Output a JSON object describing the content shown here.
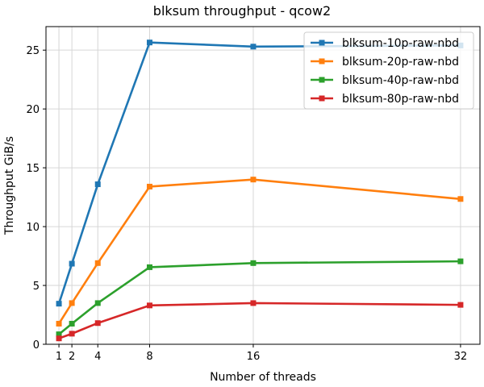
{
  "chart_data": {
    "type": "line",
    "title": "blksum throughput - qcow2",
    "xlabel": "Number of threads",
    "ylabel": "Throughput GiB/s",
    "x": [
      1,
      2,
      4,
      8,
      16,
      32
    ],
    "x_ticks": [
      1,
      2,
      4,
      8,
      16,
      32
    ],
    "y_ticks": [
      0,
      5,
      10,
      15,
      20,
      25
    ],
    "xlim": [
      0,
      33.5
    ],
    "ylim": [
      0,
      27
    ],
    "grid": true,
    "legend_position": "top-right",
    "marker": "square",
    "series": [
      {
        "name": "blksum-10p-raw-nbd",
        "color": "#1f77b4",
        "values": [
          3.45,
          6.85,
          13.6,
          25.65,
          25.3,
          25.4
        ]
      },
      {
        "name": "blksum-20p-raw-nbd",
        "color": "#ff7f0e",
        "values": [
          1.75,
          3.5,
          6.9,
          13.4,
          14.0,
          12.35
        ]
      },
      {
        "name": "blksum-40p-raw-nbd",
        "color": "#2ca02c",
        "values": [
          0.85,
          1.75,
          3.5,
          6.55,
          6.9,
          7.05
        ]
      },
      {
        "name": "blksum-80p-raw-nbd",
        "color": "#d62728",
        "values": [
          0.5,
          0.9,
          1.8,
          3.3,
          3.5,
          3.35
        ]
      }
    ]
  }
}
